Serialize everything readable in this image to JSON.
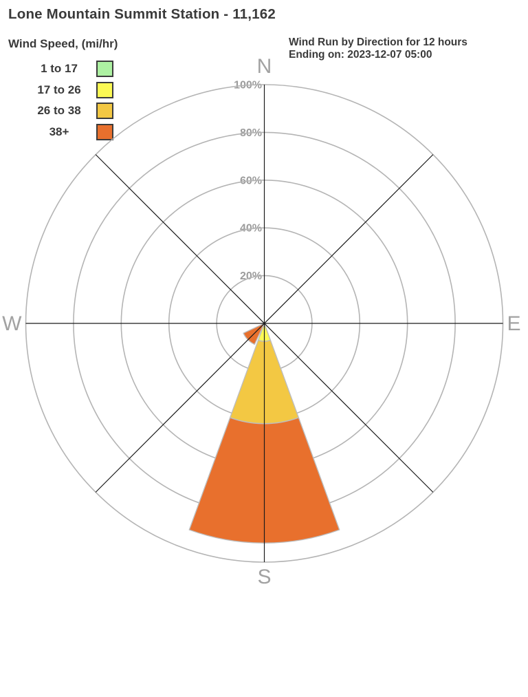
{
  "page": {
    "title": "Lone Mountain Summit Station - 11,162"
  },
  "legend": {
    "title": "Wind Speed, (mi/hr)",
    "items": [
      {
        "label": "1 to 17",
        "color": "#adf1a2"
      },
      {
        "label": "17 to 26",
        "color": "#fcf954"
      },
      {
        "label": "26 to 38",
        "color": "#f3c843"
      },
      {
        "label": "38+",
        "color": "#e8702d"
      }
    ]
  },
  "chart_header": {
    "line1": "Wind Run by Direction for 12 hours",
    "line2": "Ending on: 2023-12-07 05:00"
  },
  "chart_data": {
    "type": "wind_rose",
    "title": "Wind Run by Direction for 12 hours",
    "subtitle": "Ending on: 2023-12-07 05:00",
    "radial_axis": {
      "unit": "%",
      "ticks": [
        20,
        40,
        60,
        80,
        100
      ],
      "max": 100
    },
    "cardinal_labels": [
      "N",
      "E",
      "S",
      "W"
    ],
    "sector_full_angle_deg": 40,
    "grid": "polar-rings-with-8-spokes",
    "speed_bins": [
      {
        "label": "1 to 17",
        "color": "#adf1a2"
      },
      {
        "label": "17 to 26",
        "color": "#fcf954"
      },
      {
        "label": "26 to 38",
        "color": "#f3c843"
      },
      {
        "label": "38+",
        "color": "#e8702d"
      }
    ],
    "petals": [
      {
        "direction": "S",
        "azimuth_deg": 180,
        "segments": [
          {
            "bin": "17 to 26",
            "from_pct": 0,
            "to_pct": 7.5
          },
          {
            "bin": "26 to 38",
            "from_pct": 7.5,
            "to_pct": 42
          },
          {
            "bin": "38+",
            "from_pct": 42,
            "to_pct": 92
          }
        ]
      },
      {
        "direction": "SW",
        "azimuth_deg": 225,
        "segments": [
          {
            "bin": "38+",
            "from_pct": 0,
            "to_pct": 9.7
          }
        ]
      }
    ],
    "colors": {
      "ring": "#b4b4b4",
      "spoke": "#1b1b1b",
      "tick_label": "#9c9c9c",
      "cardinal_label": "#a2a2a2",
      "petal_stroke": "#bdbdbd"
    }
  }
}
